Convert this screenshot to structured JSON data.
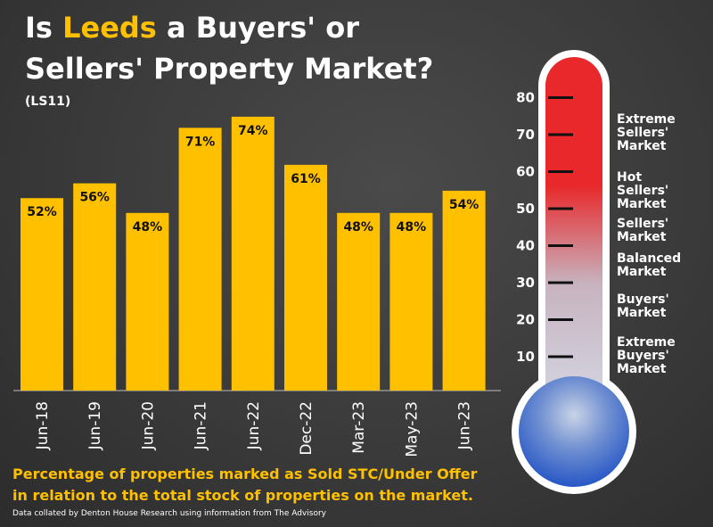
{
  "header": {
    "title_prefix": "Is ",
    "title_highlight": "Leeds",
    "title_rest": " a Buyers' or",
    "title_line2": "Sellers' Property Market?",
    "subtitle": "(LS11)"
  },
  "chart_data": {
    "type": "bar",
    "categories": [
      "Jun-18",
      "Jun-19",
      "Jun-20",
      "Jun-21",
      "Jun-22",
      "Dec-22",
      "Mar-23",
      "May-23",
      "Jun-23"
    ],
    "values": [
      52,
      56,
      48,
      71,
      74,
      61,
      48,
      48,
      54
    ],
    "value_labels": [
      "52%",
      "56%",
      "48%",
      "71%",
      "74%",
      "61%",
      "48%",
      "48%",
      "54%"
    ],
    "ylim": [
      0,
      80
    ],
    "bar_color": "#ffc000",
    "grid": false
  },
  "thermometer": {
    "scale": [
      10,
      20,
      30,
      40,
      50,
      60,
      70,
      80
    ],
    "top_color": "#e8282a",
    "mid_color": "#c7b3bf",
    "bottom_color": "#1d4fc4",
    "zones": [
      {
        "id": "extreme-sellers",
        "label": "Extreme\nSellers'\nMarket"
      },
      {
        "id": "hot-sellers",
        "label": "Hot\nSellers'\nMarket"
      },
      {
        "id": "sellers",
        "label": "Sellers'\nMarket"
      },
      {
        "id": "balanced",
        "label": "Balanced\nMarket"
      },
      {
        "id": "buyers",
        "label": "Buyers'\nMarket"
      },
      {
        "id": "extreme-buyers",
        "label": "Extreme\n Buyers'\nMarket"
      }
    ]
  },
  "footer": {
    "caption_line1": "Percentage of properties marked as Sold STC/Under Offer",
    "caption_line2": "in relation to the total stock of properties on the market.",
    "source": "Data collated by Denton House Research using information from The Advisory"
  }
}
